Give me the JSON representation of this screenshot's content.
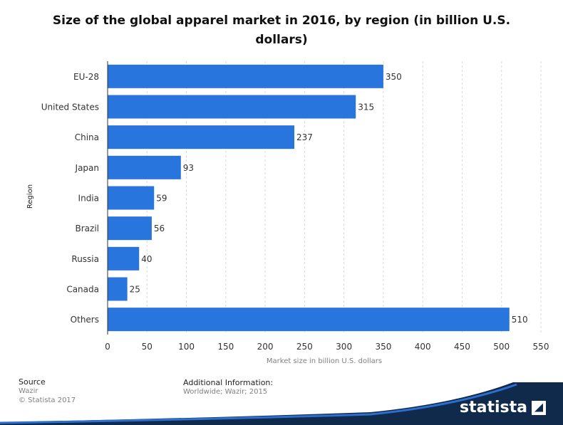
{
  "chart_data": {
    "type": "bar",
    "orientation": "horizontal",
    "title": "Size of the global apparel market in 2016, by region (in billion U.S. dollars)",
    "xlabel": "Market size in billion U.S. dollars",
    "ylabel": "Region",
    "categories": [
      "EU-28",
      "United States",
      "China",
      "Japan",
      "India",
      "Brazil",
      "Russia",
      "Canada",
      "Others"
    ],
    "values": [
      350,
      315,
      237,
      93,
      59,
      56,
      40,
      25,
      510
    ],
    "xlim": [
      0,
      550
    ],
    "xticks": [
      0,
      50,
      100,
      150,
      200,
      250,
      300,
      350,
      400,
      450,
      500,
      550
    ],
    "grid": true,
    "bar_color": "#2876dd"
  },
  "footer": {
    "source_heading": "Source",
    "source_name": "Wazir",
    "copyright": "© Statista 2017",
    "info_heading": "Additional Information:",
    "info_text": "Worldwide; Wazir; 2015"
  },
  "brand": {
    "logo_text": "statista"
  }
}
